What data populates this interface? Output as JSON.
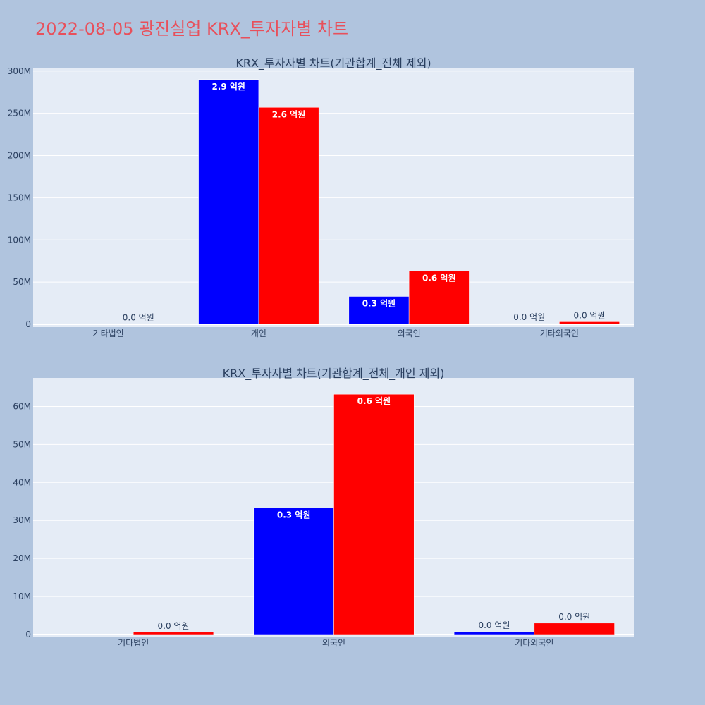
{
  "title": "2022-08-05 광진실업 KRX_투자자별 차트",
  "colors": {
    "background": "#b0c4de",
    "plot_background": "#e5ecf6",
    "series_blue": "#0000ff",
    "series_red": "#ff0000",
    "title_color": "#e8505b",
    "text_color": "#2a3f5f"
  },
  "chart_data": [
    {
      "type": "bar",
      "title": "KRX_투자자별 차트(기관합계_전체 제외)",
      "categories": [
        "기타법인",
        "개인",
        "외국인",
        "기타외국인"
      ],
      "series": [
        {
          "color": "#0000ff",
          "values": [
            0,
            290000000,
            33000000,
            700000
          ],
          "labels": [
            "",
            "2.9 억원",
            "0.3 억원",
            "0.0 억원"
          ]
        },
        {
          "color": "#ff0000",
          "values": [
            600000,
            257000000,
            63000000,
            3000000
          ],
          "labels": [
            "0.0 억원",
            "2.6 억원",
            "0.6 억원",
            "0.0 억원"
          ]
        }
      ],
      "yticks": [
        0,
        50000000,
        100000000,
        150000000,
        200000000,
        250000000,
        300000000
      ],
      "ytick_labels": [
        "0",
        "50M",
        "100M",
        "150M",
        "200M",
        "250M",
        "300M"
      ],
      "ylim": [
        0,
        304000000
      ],
      "grid": true
    },
    {
      "type": "bar",
      "title": "KRX_투자자별 차트(기관합계_전체_개인 제외)",
      "categories": [
        "기타법인",
        "외국인",
        "기타외국인"
      ],
      "series": [
        {
          "color": "#0000ff",
          "values": [
            0,
            33300000,
            700000
          ],
          "labels": [
            "",
            "0.3 억원",
            "0.0 억원"
          ]
        },
        {
          "color": "#ff0000",
          "values": [
            600000,
            63200000,
            3000000
          ],
          "labels": [
            "0.0 억원",
            "0.6 억원",
            "0.0 억원"
          ]
        }
      ],
      "yticks": [
        0,
        10000000,
        20000000,
        30000000,
        40000000,
        50000000,
        60000000
      ],
      "ytick_labels": [
        "0",
        "10M",
        "20M",
        "30M",
        "40M",
        "50M",
        "60M"
      ],
      "ylim": [
        0,
        67500000
      ],
      "grid": true
    }
  ]
}
